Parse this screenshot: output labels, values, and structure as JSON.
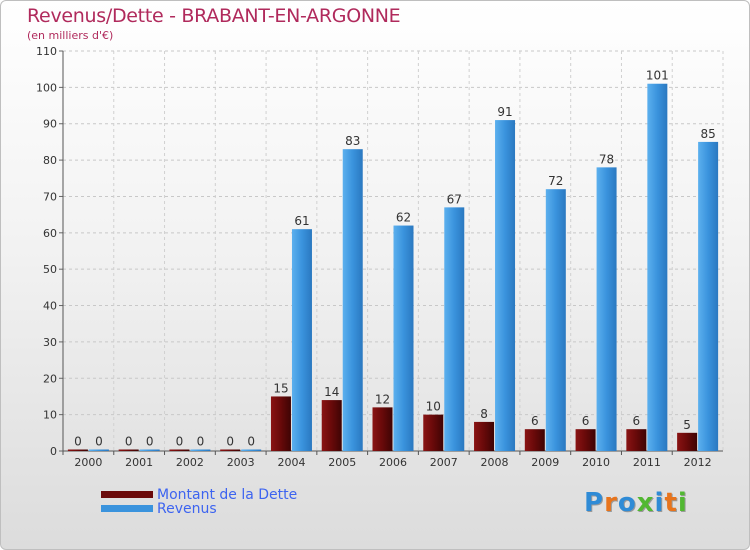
{
  "header": {
    "title": "Revenus/Dette - BRABANT-EN-ARGONNE",
    "subtitle": "(en milliers d'€)"
  },
  "legend": {
    "items": [
      {
        "label": "Montant de la Dette",
        "color": "#6b0a0a"
      },
      {
        "label": "Revenus",
        "color": "#3a93dd"
      }
    ]
  },
  "logo": {
    "text": "Proxiti",
    "colors": [
      "#2f8bd6",
      "#e8741c",
      "#2f8bd6",
      "#52b832",
      "#2f8bd6",
      "#e8741c",
      "#52b832"
    ]
  },
  "chart_data": {
    "type": "bar",
    "title": "Revenus/Dette - BRABANT-EN-ARGONNE",
    "subtitle": "(en milliers d'€)",
    "categories": [
      "2000",
      "2001",
      "2002",
      "2003",
      "2004",
      "2005",
      "2006",
      "2007",
      "2008",
      "2009",
      "2010",
      "2011",
      "2012"
    ],
    "series": [
      {
        "name": "Montant de la Dette",
        "color": "#6b0a0a",
        "values": [
          0,
          0,
          0,
          0,
          15,
          14,
          12,
          10,
          8,
          6,
          6,
          6,
          5
        ]
      },
      {
        "name": "Revenus",
        "color": "#3a93dd",
        "values": [
          0,
          0,
          0,
          0,
          61,
          83,
          62,
          67,
          91,
          72,
          78,
          101,
          85
        ]
      }
    ],
    "ylim": [
      0,
      110
    ],
    "yticks": [
      0,
      10,
      20,
      30,
      40,
      50,
      60,
      70,
      80,
      90,
      100,
      110
    ],
    "grid": true,
    "legend_position": "bottom-left"
  }
}
